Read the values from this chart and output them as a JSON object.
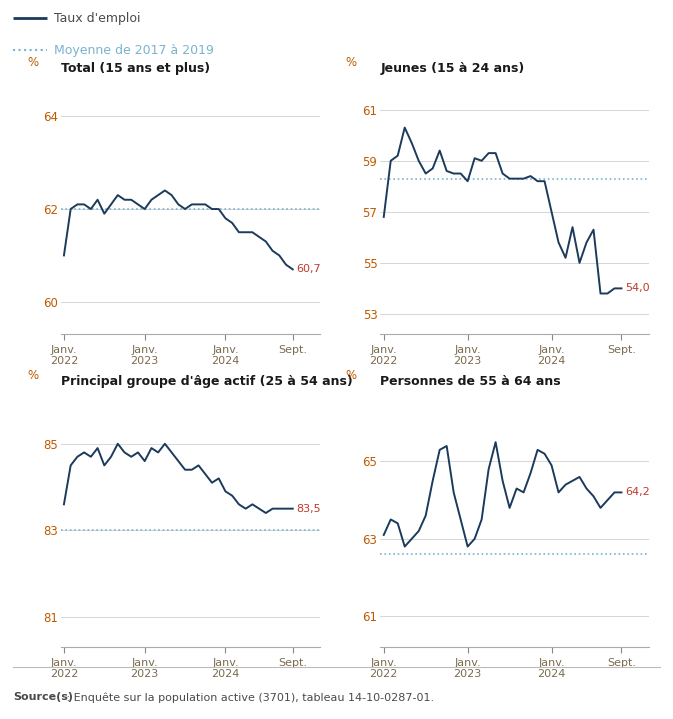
{
  "legend_line1": "Taux d'emploi",
  "legend_line2": "Moyenne de 2017 à 2019",
  "line_color": "#1b3a5c",
  "avg_color": "#7ab3d0",
  "text_color": "#4a4a4a",
  "title_color": "#1a1a1a",
  "label_color": "#c0392b",
  "source_bold": "Source(s)",
  "source_rest": " : Enquête sur la population active (3701), tableau 14-10-0287-01.",
  "bg_color": "#ffffff",
  "grid_color": "#d0d0d0",
  "panels": [
    {
      "title": "Total (15 ans et plus)",
      "yticks": [
        60,
        62,
        64
      ],
      "ylim": [
        59.3,
        64.8
      ],
      "avg_value": 62.0,
      "last_value": 60.7,
      "last_label": "60,7",
      "data": [
        61.0,
        62.0,
        62.1,
        62.1,
        62.0,
        62.2,
        61.9,
        62.1,
        62.3,
        62.2,
        62.2,
        62.1,
        62.0,
        62.2,
        62.3,
        62.4,
        62.3,
        62.1,
        62.0,
        62.1,
        62.1,
        62.1,
        62.0,
        62.0,
        61.8,
        61.7,
        61.5,
        61.5,
        61.5,
        61.4,
        61.3,
        61.1,
        61.0,
        60.8,
        60.7
      ]
    },
    {
      "title": "Jeunes (15 à 24 ans)",
      "yticks": [
        53,
        55,
        57,
        59,
        61
      ],
      "ylim": [
        52.2,
        62.2
      ],
      "avg_value": 58.3,
      "last_value": 54.0,
      "last_label": "54,0",
      "data": [
        56.8,
        59.0,
        59.2,
        60.3,
        59.7,
        59.0,
        58.5,
        58.7,
        59.4,
        58.6,
        58.5,
        58.5,
        58.2,
        59.1,
        59.0,
        59.3,
        59.3,
        58.5,
        58.3,
        58.3,
        58.3,
        58.4,
        58.2,
        58.2,
        57.0,
        55.8,
        55.2,
        56.4,
        55.0,
        55.8,
        56.3,
        53.8,
        53.8,
        54.0,
        54.0
      ]
    },
    {
      "title": "Principal groupe d'âge actif (25 à 54 ans)",
      "yticks": [
        81,
        83,
        85
      ],
      "ylim": [
        80.3,
        86.2
      ],
      "avg_value": 83.0,
      "last_value": 83.5,
      "last_label": "83,5",
      "data": [
        83.6,
        84.5,
        84.7,
        84.8,
        84.7,
        84.9,
        84.5,
        84.7,
        85.0,
        84.8,
        84.7,
        84.8,
        84.6,
        84.9,
        84.8,
        85.0,
        84.8,
        84.6,
        84.4,
        84.4,
        84.5,
        84.3,
        84.1,
        84.2,
        83.9,
        83.8,
        83.6,
        83.5,
        83.6,
        83.5,
        83.4,
        83.5,
        83.5,
        83.5,
        83.5
      ]
    },
    {
      "title": "Personnes de 55 à 64 ans",
      "yticks": [
        61,
        63,
        65
      ],
      "ylim": [
        60.2,
        66.8
      ],
      "avg_value": 62.6,
      "last_value": 64.2,
      "last_label": "64,2",
      "data": [
        63.1,
        63.5,
        63.4,
        62.8,
        63.0,
        63.2,
        63.6,
        64.5,
        65.3,
        65.4,
        64.2,
        63.5,
        62.8,
        63.0,
        63.5,
        64.8,
        65.5,
        64.5,
        63.8,
        64.3,
        64.2,
        64.7,
        65.3,
        65.2,
        64.9,
        64.2,
        64.4,
        64.5,
        64.6,
        64.3,
        64.1,
        63.8,
        64.0,
        64.2,
        64.2
      ]
    }
  ],
  "xtick_positions": [
    0,
    12,
    24,
    34
  ],
  "xtick_labels": [
    "Janv.\n2022",
    "Janv.\n2023",
    "Janv.\n2024",
    "Sept."
  ]
}
